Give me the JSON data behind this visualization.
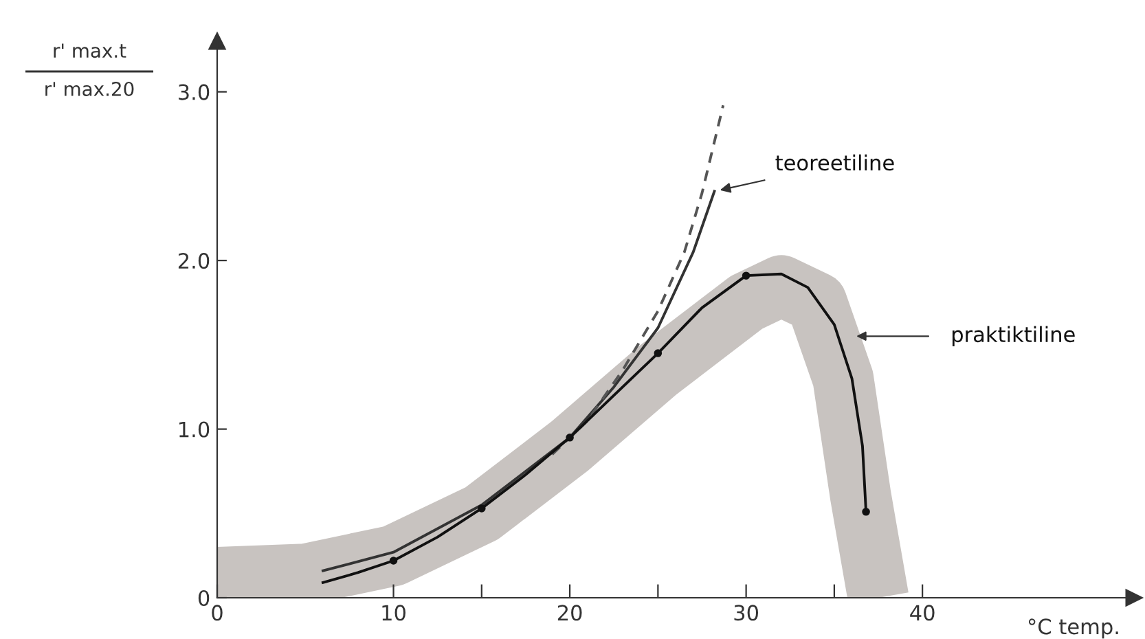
{
  "chart_data": {
    "type": "line",
    "xlabel": "°C temp.",
    "ylabel": "r' max.t\nr' max.20",
    "xlim": [
      0,
      52
    ],
    "ylim": [
      0,
      3.3
    ],
    "xticks": [
      0,
      10,
      {
        "value": 15,
        "label": null
      },
      20,
      {
        "value": 25,
        "label": null
      },
      30,
      {
        "value": 35,
        "label": null
      },
      40
    ],
    "yticks": [
      0,
      {
        "value": 1.0,
        "label": "1.0"
      },
      {
        "value": 2.0,
        "label": "2.0"
      },
      {
        "value": 3.0,
        "label": "3.0"
      }
    ],
    "grid": false,
    "legend": false,
    "series": [
      {
        "color": "#c8c3c0",
        "x": [
          0,
          5,
          10,
          15,
          20,
          25,
          30,
          32,
          34,
          35.5,
          36.5,
          37.5
        ],
        "values": [
          0.12,
          0.14,
          0.25,
          0.5,
          0.9,
          1.35,
          1.75,
          1.85,
          1.75,
          1.3,
          0.6,
          0
        ]
      },
      {
        "color": "#333333",
        "line_style": "solid",
        "x": [
          6,
          10,
          15,
          20,
          22.5,
          25,
          27,
          28.2
        ],
        "values": [
          0.16,
          0.27,
          0.55,
          0.95,
          1.25,
          1.6,
          2.05,
          2.41
        ]
      },
      {
        "color": "#555555",
        "line_style": "dashed",
        "x": [
          19,
          21,
          23,
          25,
          26.5,
          27.5,
          28.7
        ],
        "values": [
          0.85,
          1.05,
          1.35,
          1.7,
          2.05,
          2.4,
          2.92
        ]
      },
      {
        "color": "#111111",
        "line_style": "solid",
        "x": [
          6,
          8,
          10,
          12.5,
          15,
          17.5,
          20,
          22.5,
          25,
          27.5,
          30,
          32,
          33.5,
          35,
          36,
          36.6,
          36.8
        ],
        "values": [
          0.09,
          0.15,
          0.22,
          0.36,
          0.53,
          0.73,
          0.95,
          1.2,
          1.45,
          1.72,
          1.91,
          1.92,
          1.84,
          1.62,
          1.3,
          0.9,
          0.51
        ]
      },
      {
        "type": "scatter",
        "color": "#111111",
        "marker": "circle",
        "x": [
          10,
          15,
          20,
          25,
          30,
          36.8
        ],
        "values": [
          0.22,
          0.53,
          0.95,
          1.45,
          1.91,
          0.51
        ]
      }
    ],
    "annotations": [
      {
        "text": "teoreetiline",
        "x": 28.2,
        "y": 2.41
      },
      "praktiktiline"
    ]
  }
}
